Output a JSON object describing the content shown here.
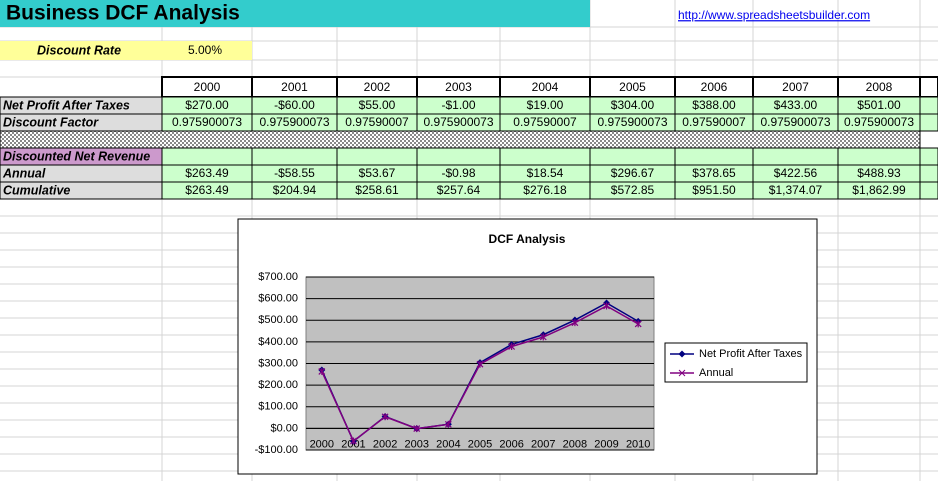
{
  "header": {
    "title": "Business DCF Analysis",
    "link": "http://www.spreadsheetsbuilder.com"
  },
  "discount": {
    "label": "Discount Rate",
    "value": "5.00%"
  },
  "table": {
    "years": [
      "2000",
      "2001",
      "2002",
      "2003",
      "2004",
      "2005",
      "2006",
      "2007",
      "2008"
    ],
    "rows": [
      {
        "label": "Net Profit After Taxes",
        "cells": [
          "$270.00",
          "-$60.00",
          "$55.00",
          "-$1.00",
          "$19.00",
          "$304.00",
          "$388.00",
          "$433.00",
          "$501.00"
        ]
      },
      {
        "label": "Discount Factor",
        "cells": [
          "0.975900073",
          "0.975900073",
          "0.97590007",
          "0.975900073",
          "0.97590007",
          "0.975900073",
          "0.97590007",
          "0.975900073",
          "0.975900073"
        ]
      },
      {
        "label": "Discounted Net Revenue"
      },
      {
        "label": "Annual",
        "cells": [
          "$263.49",
          "-$58.55",
          "$53.67",
          "-$0.98",
          "$18.54",
          "$296.67",
          "$378.65",
          "$422.56",
          "$488.93"
        ]
      },
      {
        "label": "Cumulative",
        "cells": [
          "$263.49",
          "$204.94",
          "$258.61",
          "$257.64",
          "$276.18",
          "$572.85",
          "$951.50",
          "$1,374.07",
          "$1,862.99"
        ]
      }
    ]
  },
  "chart_data": {
    "type": "line",
    "title": "DCF Analysis",
    "categories": [
      "2000",
      "2001",
      "2002",
      "2003",
      "2004",
      "2005",
      "2006",
      "2007",
      "2008",
      "2009",
      "2010"
    ],
    "series": [
      {
        "name": "Net Profit After Taxes",
        "color": "#000080",
        "values": [
          270,
          -60,
          55,
          -1,
          19,
          304,
          388,
          433,
          501,
          580,
          495
        ]
      },
      {
        "name": "Annual",
        "color": "#800080",
        "values": [
          263.49,
          -58.55,
          53.67,
          -0.98,
          18.54,
          296.67,
          378.65,
          422.56,
          488.93,
          566,
          483
        ]
      }
    ],
    "ylim": [
      -100,
      700
    ],
    "yticks": [
      {
        "value": -100,
        "label": "-$100.00"
      },
      {
        "value": 0,
        "label": "$0.00"
      },
      {
        "value": 100,
        "label": "$100.00"
      },
      {
        "value": 200,
        "label": "$200.00"
      },
      {
        "value": 300,
        "label": "$300.00"
      },
      {
        "value": 400,
        "label": "$400.00"
      },
      {
        "value": 500,
        "label": "$500.00"
      },
      {
        "value": 600,
        "label": "$600.00"
      },
      {
        "value": 700,
        "label": "$700.00"
      }
    ],
    "grid": true,
    "plot_background": "#C0C0C0",
    "legend": "right"
  }
}
